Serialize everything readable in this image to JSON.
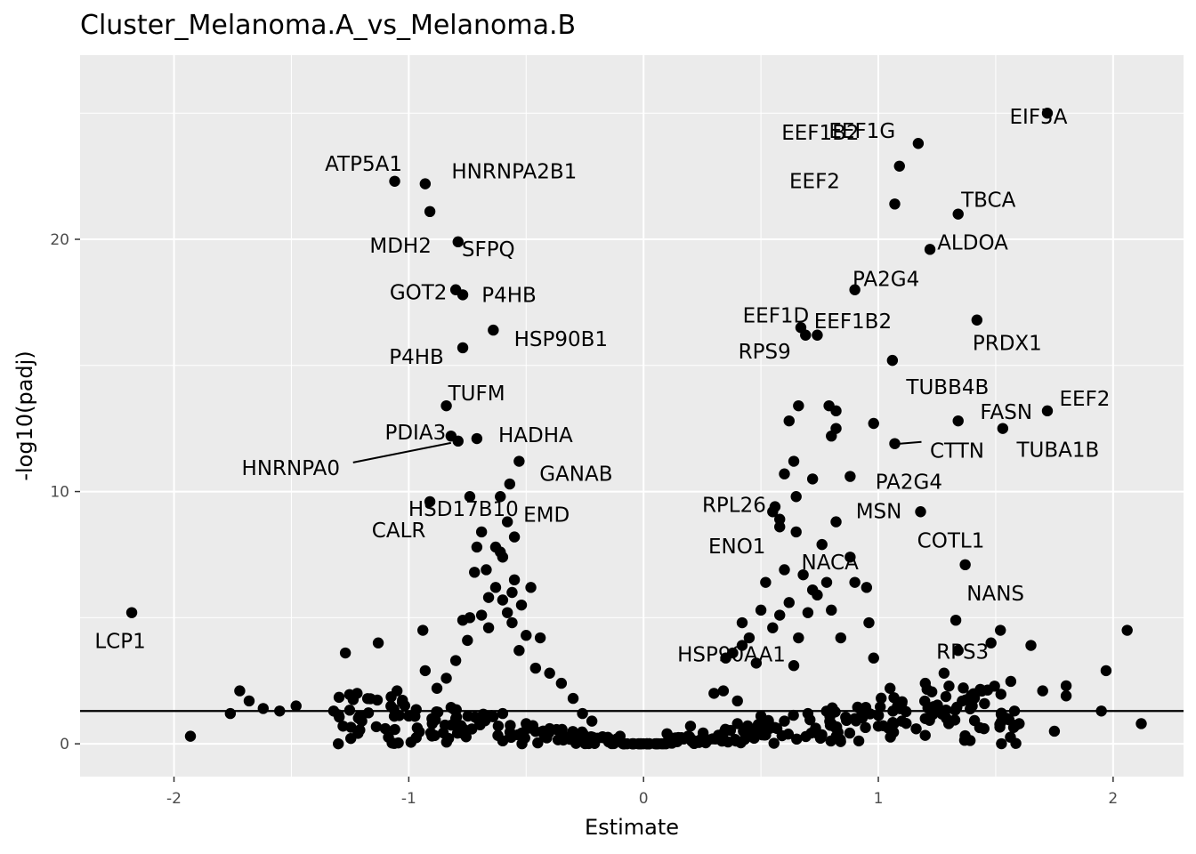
{
  "chart_data": {
    "type": "scatter",
    "title": "Cluster_Melanoma.A_vs_Melanoma.B",
    "xlabel": "Estimate",
    "ylabel": "-log10(padj)",
    "xlim": [
      -2.4,
      2.3
    ],
    "ylim": [
      -1.3,
      27.3
    ],
    "x_ticks": [
      -2,
      -1,
      0,
      1,
      2
    ],
    "x_tick_labels": [
      "-2",
      "-1",
      "0",
      "1",
      "2"
    ],
    "y_ticks": [
      0,
      10,
      20
    ],
    "y_tick_labels": [
      "0",
      "10",
      "20"
    ],
    "threshold_line_y": 1.3,
    "grid": true,
    "background": "#ebebeb",
    "point_color": "#000000",
    "labeled_points": [
      {
        "gene": "EIF5A",
        "x": 1.72,
        "y": 25.0
      },
      {
        "gene": "EEF1B2",
        "x": 1.17,
        "y": 23.8
      },
      {
        "gene": "ATP5A1",
        "x": -1.06,
        "y": 22.3
      },
      {
        "gene": "HNRNPA2B1",
        "x": -0.93,
        "y": 22.2
      },
      {
        "gene": "EEF2",
        "x": 1.07,
        "y": 21.4
      },
      {
        "gene": "TBCA",
        "x": 1.34,
        "y": 21.0
      },
      {
        "gene": "MDH2",
        "x": -0.91,
        "y": 21.1
      },
      {
        "gene": "EEF1G",
        "x": 1.09,
        "y": 22.9
      },
      {
        "gene": "ALDOA",
        "x": 1.22,
        "y": 19.6
      },
      {
        "gene": "SFPQ",
        "x": -0.79,
        "y": 19.9
      },
      {
        "gene": "PA2G4",
        "x": 0.9,
        "y": 18.0
      },
      {
        "gene": "GOT2",
        "x": -0.8,
        "y": 18.0
      },
      {
        "gene": "P4HB",
        "x": -0.77,
        "y": 17.8
      },
      {
        "gene": "EEF1D",
        "x": 0.67,
        "y": 16.5
      },
      {
        "gene": "PRDX1",
        "x": 1.42,
        "y": 16.8
      },
      {
        "gene": "P4HB",
        "x": -0.77,
        "y": 15.7
      },
      {
        "gene": "HSP90B1",
        "x": -0.64,
        "y": 16.4
      },
      {
        "gene": "EEF1B2",
        "x": 0.74,
        "y": 16.2
      },
      {
        "gene": "RPS9",
        "x": 0.69,
        "y": 16.2
      },
      {
        "gene": "TUBB4B",
        "x": 1.06,
        "y": 15.2
      },
      {
        "gene": "TUFM",
        "x": -0.84,
        "y": 13.4
      },
      {
        "gene": "EEF2",
        "x": 1.72,
        "y": 13.2
      },
      {
        "gene": "FASN",
        "x": 1.34,
        "y": 12.8
      },
      {
        "gene": "PDIA3",
        "x": -0.82,
        "y": 12.2
      },
      {
        "gene": "HADHA",
        "x": -0.71,
        "y": 12.1
      },
      {
        "gene": "TUBA1B",
        "x": 1.53,
        "y": 12.5
      },
      {
        "gene": "CTTN",
        "x": 1.07,
        "y": 11.9
      },
      {
        "gene": "HNRNPA0",
        "x": -0.79,
        "y": 12.0
      },
      {
        "gene": "GANAB",
        "x": -0.53,
        "y": 11.2
      },
      {
        "gene": "HSD17B10",
        "x": -0.57,
        "y": 10.3
      },
      {
        "gene": "PA2G4",
        "x": 0.88,
        "y": 10.6
      },
      {
        "gene": "RPL26",
        "x": 0.56,
        "y": 9.4
      },
      {
        "gene": "EMD",
        "x": -0.58,
        "y": 8.8
      },
      {
        "gene": "CALR",
        "x": -0.91,
        "y": 9.6
      },
      {
        "gene": "MSN",
        "x": 0.82,
        "y": 8.8
      },
      {
        "gene": "COTL1",
        "x": 1.18,
        "y": 9.2
      },
      {
        "gene": "ENO1",
        "x": 0.58,
        "y": 8.9
      },
      {
        "gene": "NACA",
        "x": 0.65,
        "y": 8.4
      },
      {
        "gene": "NANS",
        "x": 1.37,
        "y": 7.1
      },
      {
        "gene": "LCP1",
        "x": -2.18,
        "y": 5.2
      },
      {
        "gene": "HSP90AA1",
        "x": 0.42,
        "y": 3.9
      },
      {
        "gene": "RPS3",
        "x": 1.48,
        "y": 4.0
      }
    ],
    "other_points": [
      [
        -1.93,
        0.3
      ],
      [
        -1.76,
        1.2
      ],
      [
        -1.72,
        2.1
      ],
      [
        -1.68,
        1.7
      ],
      [
        -1.62,
        1.4
      ],
      [
        -1.55,
        1.3
      ],
      [
        -1.48,
        1.5
      ],
      [
        -1.32,
        1.3
      ],
      [
        -1.27,
        3.6
      ],
      [
        -1.22,
        2.0
      ],
      [
        -1.13,
        4.0
      ],
      [
        -1.05,
        2.1
      ],
      [
        -0.94,
        4.5
      ],
      [
        -0.93,
        2.9
      ],
      [
        -0.88,
        2.2
      ],
      [
        -0.84,
        2.6
      ],
      [
        -0.8,
        3.3
      ],
      [
        -0.75,
        4.1
      ],
      [
        -0.74,
        5.0
      ],
      [
        -0.72,
        6.8
      ],
      [
        -0.69,
        5.1
      ],
      [
        -0.67,
        6.9
      ],
      [
        -0.66,
        4.6
      ],
      [
        -0.63,
        6.2
      ],
      [
        -0.61,
        7.6
      ],
      [
        -0.6,
        5.7
      ],
      [
        -0.58,
        5.2
      ],
      [
        -0.56,
        4.8
      ],
      [
        -0.55,
        6.5
      ],
      [
        -0.53,
        3.7
      ],
      [
        -0.52,
        5.5
      ],
      [
        -0.5,
        4.3
      ],
      [
        -0.48,
        6.2
      ],
      [
        -0.46,
        3.0
      ],
      [
        -0.44,
        4.2
      ],
      [
        -0.4,
        2.8
      ],
      [
        -0.35,
        2.4
      ],
      [
        -0.3,
        1.8
      ],
      [
        -0.26,
        1.2
      ],
      [
        -0.22,
        0.9
      ],
      [
        -0.63,
        7.8
      ],
      [
        -0.69,
        8.4
      ],
      [
        -0.71,
        7.8
      ],
      [
        -0.61,
        9.8
      ],
      [
        -0.74,
        9.8
      ],
      [
        -0.56,
        6.0
      ],
      [
        -0.6,
        7.4
      ],
      [
        -0.55,
        8.2
      ],
      [
        -0.66,
        5.8
      ],
      [
        -0.77,
        4.9
      ],
      [
        0.3,
        2.0
      ],
      [
        0.35,
        3.4
      ],
      [
        0.38,
        3.6
      ],
      [
        0.42,
        4.8
      ],
      [
        0.45,
        4.2
      ],
      [
        0.48,
        3.2
      ],
      [
        0.5,
        5.3
      ],
      [
        0.52,
        6.4
      ],
      [
        0.55,
        4.6
      ],
      [
        0.58,
        5.1
      ],
      [
        0.6,
        6.9
      ],
      [
        0.62,
        5.6
      ],
      [
        0.64,
        3.1
      ],
      [
        0.66,
        4.2
      ],
      [
        0.68,
        6.7
      ],
      [
        0.7,
        5.2
      ],
      [
        0.72,
        6.1
      ],
      [
        0.74,
        5.9
      ],
      [
        0.76,
        7.9
      ],
      [
        0.78,
        6.4
      ],
      [
        0.8,
        5.3
      ],
      [
        0.84,
        4.2
      ],
      [
        0.88,
        7.4
      ],
      [
        0.9,
        6.4
      ],
      [
        0.95,
        6.2
      ],
      [
        0.96,
        4.8
      ],
      [
        0.98,
        3.4
      ],
      [
        1.05,
        2.2
      ],
      [
        1.1,
        1.6
      ],
      [
        1.2,
        2.4
      ],
      [
        1.28,
        2.8
      ],
      [
        1.33,
        4.9
      ],
      [
        1.34,
        3.7
      ],
      [
        1.4,
        1.5
      ],
      [
        1.45,
        0.6
      ],
      [
        1.52,
        4.5
      ],
      [
        1.58,
        1.3
      ],
      [
        1.6,
        0.8
      ],
      [
        1.65,
        3.9
      ],
      [
        1.7,
        2.1
      ],
      [
        1.75,
        0.5
      ],
      [
        1.8,
        2.3
      ],
      [
        1.8,
        1.9
      ],
      [
        1.95,
        1.3
      ],
      [
        1.97,
        2.9
      ],
      [
        2.06,
        4.5
      ],
      [
        2.12,
        0.8
      ],
      [
        0.62,
        12.8
      ],
      [
        0.64,
        11.2
      ],
      [
        0.66,
        13.4
      ],
      [
        0.72,
        10.5
      ],
      [
        0.79,
        13.4
      ],
      [
        0.8,
        12.2
      ],
      [
        0.82,
        12.5
      ],
      [
        0.82,
        13.2
      ],
      [
        0.98,
        12.7
      ],
      [
        0.6,
        10.7
      ],
      [
        0.65,
        9.8
      ],
      [
        0.55,
        9.2
      ],
      [
        0.58,
        8.6
      ],
      [
        0.34,
        2.1
      ],
      [
        0.4,
        1.7
      ],
      [
        0.2,
        0.7
      ],
      [
        0.1,
        0.4
      ],
      [
        -0.1,
        0.3
      ],
      [
        -1.28,
        0.7
      ],
      [
        -1.2,
        0.9
      ],
      [
        -1.1,
        0.6
      ],
      [
        -1.0,
        1.1
      ],
      [
        -0.9,
        0.8
      ],
      [
        -0.8,
        1.0
      ],
      [
        -0.7,
        0.9
      ],
      [
        -0.6,
        1.2
      ],
      [
        -0.5,
        0.8
      ],
      [
        -0.4,
        0.6
      ],
      [
        0.4,
        0.8
      ],
      [
        0.5,
        1.1
      ],
      [
        0.6,
        0.9
      ],
      [
        0.7,
        1.2
      ],
      [
        0.8,
        0.8
      ],
      [
        0.9,
        1.0
      ],
      [
        1.0,
        0.7
      ],
      [
        1.1,
        0.9
      ],
      [
        1.2,
        1.0
      ],
      [
        1.3,
        0.8
      ]
    ]
  }
}
